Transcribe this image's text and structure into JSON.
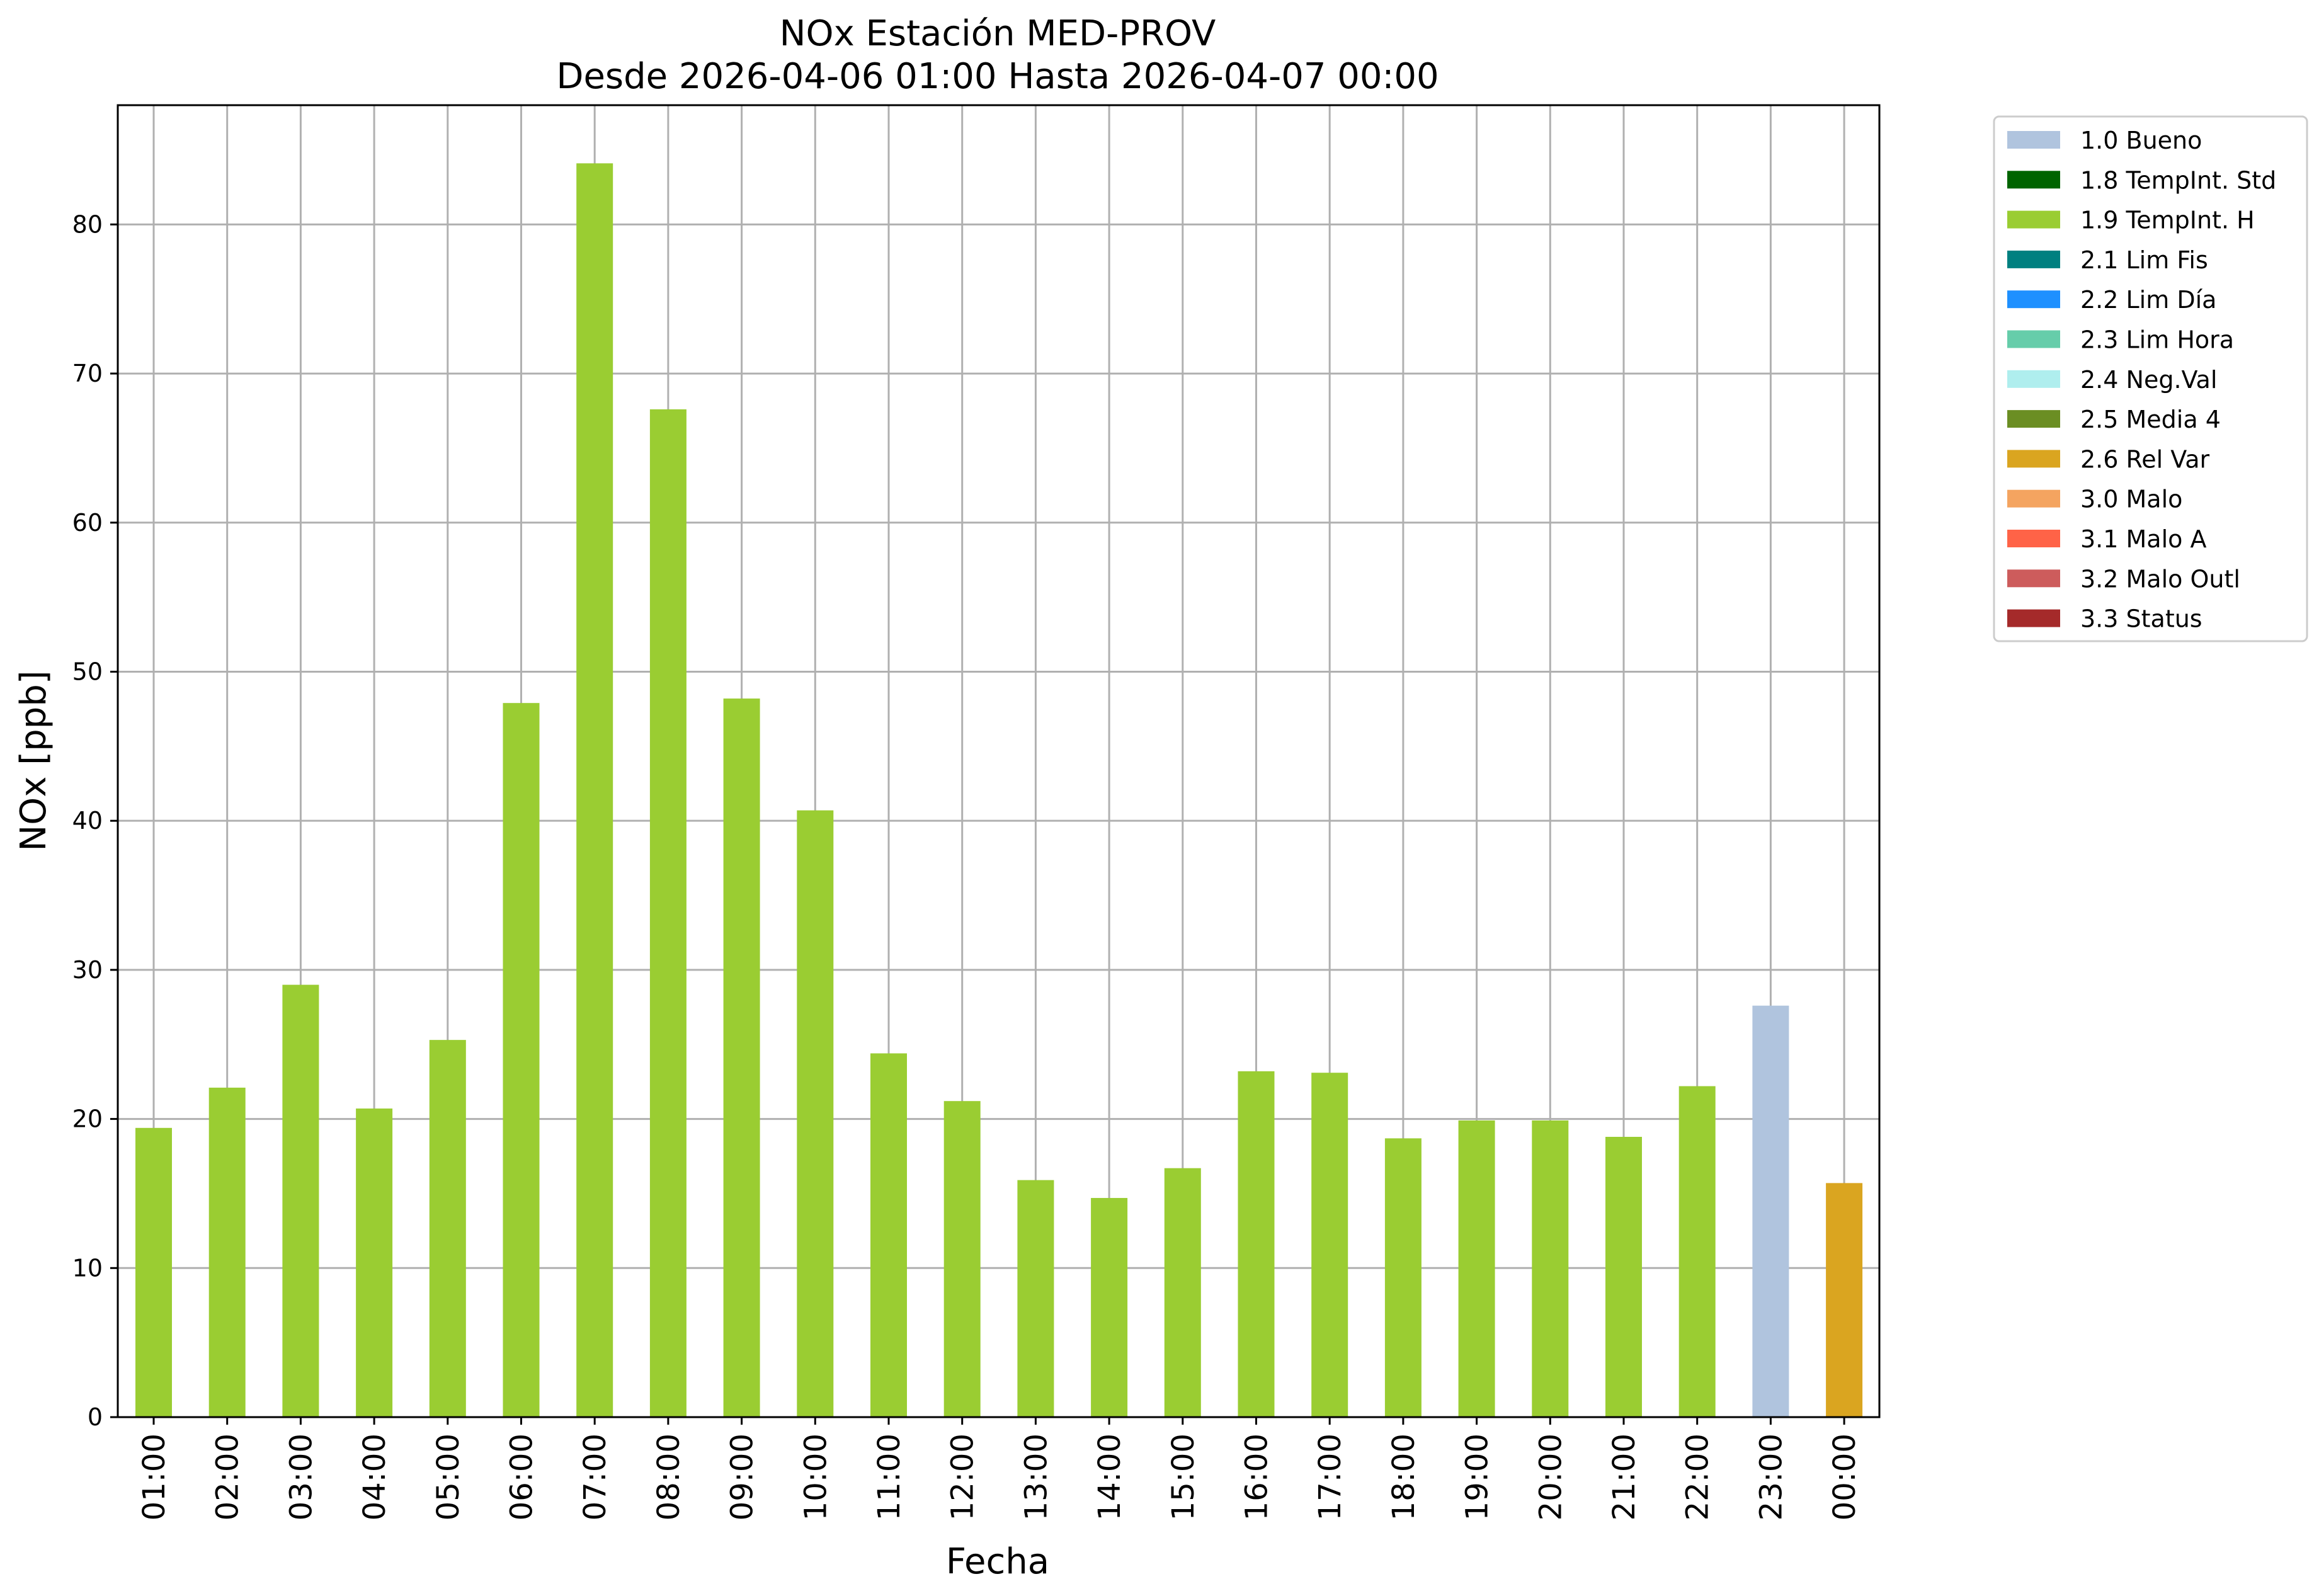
{
  "chart_data": {
    "type": "bar",
    "title": "NOx Estación MED-PROV",
    "subtitle": "Desde 2026-04-06 01:00 Hasta 2026-04-07 00:00",
    "xlabel": "Fecha",
    "ylabel": "NOx [ppb]",
    "ylim": [
      0,
      88
    ],
    "yticks": [
      0,
      10,
      20,
      30,
      40,
      50,
      60,
      70,
      80
    ],
    "grid": true,
    "legend_position": "outside-top-right",
    "categories": [
      "01:00",
      "02:00",
      "03:00",
      "04:00",
      "05:00",
      "06:00",
      "07:00",
      "08:00",
      "09:00",
      "10:00",
      "11:00",
      "12:00",
      "13:00",
      "14:00",
      "15:00",
      "16:00",
      "17:00",
      "18:00",
      "19:00",
      "20:00",
      "21:00",
      "22:00",
      "23:00",
      "00:00"
    ],
    "values": [
      19.4,
      22.1,
      29.0,
      20.7,
      25.3,
      47.9,
      84.1,
      67.6,
      48.2,
      40.7,
      24.4,
      21.2,
      15.9,
      14.7,
      16.7,
      23.2,
      23.1,
      18.7,
      19.9,
      19.9,
      18.8,
      22.2,
      27.6,
      15.7
    ],
    "flags": [
      "1.9 TempInt. H",
      "1.9 TempInt. H",
      "1.9 TempInt. H",
      "1.9 TempInt. H",
      "1.9 TempInt. H",
      "1.9 TempInt. H",
      "1.9 TempInt. H",
      "1.9 TempInt. H",
      "1.9 TempInt. H",
      "1.9 TempInt. H",
      "1.9 TempInt. H",
      "1.9 TempInt. H",
      "1.9 TempInt. H",
      "1.9 TempInt. H",
      "1.9 TempInt. H",
      "1.9 TempInt. H",
      "1.9 TempInt. H",
      "1.9 TempInt. H",
      "1.9 TempInt. H",
      "1.9 TempInt. H",
      "1.9 TempInt. H",
      "1.9 TempInt. H",
      "1.0 Bueno",
      "2.6 Rel Var"
    ],
    "legend": [
      {
        "label": "1.0 Bueno",
        "color": "#b0c4de"
      },
      {
        "label": "1.8 TempInt. Std",
        "color": "#006400"
      },
      {
        "label": "1.9 TempInt. H",
        "color": "#9acd32"
      },
      {
        "label": "2.1 Lim Fis",
        "color": "#008080"
      },
      {
        "label": "2.2 Lim Día",
        "color": "#1e90ff"
      },
      {
        "label": "2.3 Lim Hora",
        "color": "#66cdaa"
      },
      {
        "label": "2.4 Neg.Val",
        "color": "#afeeee"
      },
      {
        "label": "2.5 Media 4",
        "color": "#6b8e23"
      },
      {
        "label": "2.6 Rel Var",
        "color": "#daa520"
      },
      {
        "label": "3.0 Malo",
        "color": "#f4a460"
      },
      {
        "label": "3.1 Malo A",
        "color": "#ff6347"
      },
      {
        "label": "3.2 Malo Outl",
        "color": "#cd5c5c"
      },
      {
        "label": "3.3 Status",
        "color": "#a52a2a"
      }
    ],
    "grid_color": "#b0b0b0"
  }
}
